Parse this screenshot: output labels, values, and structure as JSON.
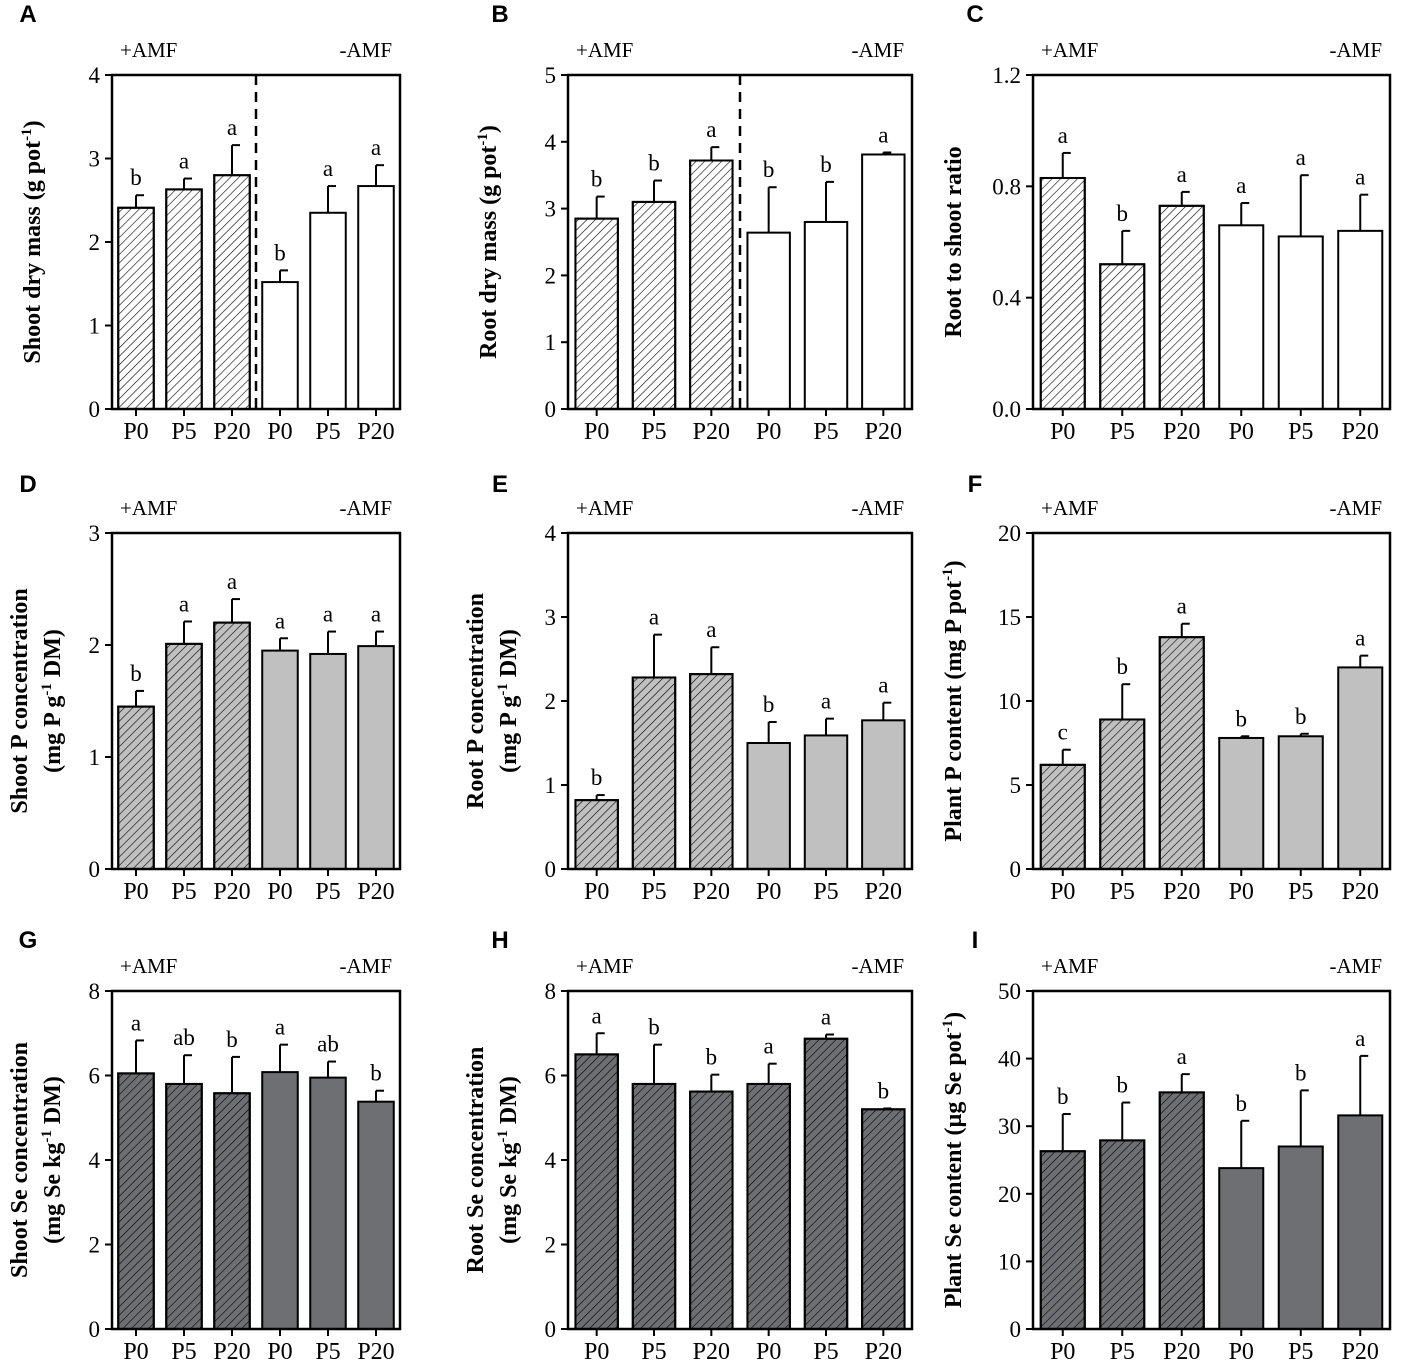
{
  "colors": {
    "light": "#ffffff",
    "medium": "#c0c0c0",
    "dark": "#6e6f72",
    "stroke": "#000000"
  },
  "chart_data": [
    {
      "type": "bar",
      "panel": "A",
      "categories": [
        "P0",
        "P5",
        "P20",
        "P0",
        "P5",
        "P20"
      ],
      "groups": [
        "+AMF",
        "-AMF"
      ],
      "ylabel_main": "Shoot dry mass (g pot",
      "ylabel_sup": "-1",
      "ylabel_end": ")",
      "ylabel_line2_main": "",
      "ylabel_line2_sup": "",
      "ylabel_line2_end": "",
      "ylim": [
        0,
        4
      ],
      "yticks": [
        "0",
        "1",
        "2",
        "3",
        "4"
      ],
      "values": [
        2.41,
        2.63,
        2.8,
        1.52,
        2.35,
        2.67
      ],
      "errors": [
        0.15,
        0.13,
        0.36,
        0.14,
        0.32,
        0.25
      ],
      "sig": [
        "b",
        "a",
        "a",
        "b",
        "a",
        "a"
      ],
      "color_amf": "light",
      "color_noamf": "light",
      "hatch_noamf": false,
      "divider": true
    },
    {
      "type": "bar",
      "panel": "B",
      "categories": [
        "P0",
        "P5",
        "P20",
        "P0",
        "P5",
        "P20"
      ],
      "groups": [
        "+AMF",
        "-AMF"
      ],
      "ylabel_main": "Root dry mass (g pot",
      "ylabel_sup": "-1",
      "ylabel_end": ")",
      "ylabel_line2_main": "",
      "ylabel_line2_sup": "",
      "ylabel_line2_end": "",
      "ylim": [
        0,
        5
      ],
      "yticks": [
        "0",
        "1",
        "2",
        "3",
        "4",
        "5"
      ],
      "values": [
        2.85,
        3.1,
        3.72,
        2.64,
        2.8,
        3.81
      ],
      "errors": [
        0.33,
        0.32,
        0.2,
        0.68,
        0.6,
        0.03
      ],
      "sig": [
        "b",
        "b",
        "a",
        "b",
        "b",
        "a"
      ],
      "color_amf": "light",
      "color_noamf": "light",
      "hatch_noamf": false,
      "divider": true
    },
    {
      "type": "bar",
      "panel": "C",
      "categories": [
        "P0",
        "P5",
        "P20",
        "P0",
        "P5",
        "P20"
      ],
      "groups": [
        "+AMF",
        "-AMF"
      ],
      "ylabel_main": "Root to shoot ratio",
      "ylabel_sup": "",
      "ylabel_end": "",
      "ylabel_line2_main": "",
      "ylabel_line2_sup": "",
      "ylabel_line2_end": "",
      "ylim": [
        0,
        1.2
      ],
      "yticks": [
        "0.0",
        "0.4",
        "0.8",
        "1.2"
      ],
      "values": [
        0.83,
        0.52,
        0.73,
        0.66,
        0.62,
        0.64
      ],
      "errors": [
        0.09,
        0.12,
        0.05,
        0.08,
        0.22,
        0.13
      ],
      "sig": [
        "a",
        "b",
        "a",
        "a",
        "a",
        "a"
      ],
      "color_amf": "light",
      "color_noamf": "light",
      "hatch_noamf": false,
      "divider": false
    },
    {
      "type": "bar",
      "panel": "D",
      "categories": [
        "P0",
        "P5",
        "P20",
        "P0",
        "P5",
        "P20"
      ],
      "groups": [
        "+AMF",
        "-AMF"
      ],
      "ylabel_main": "Shoot P concentration",
      "ylabel_sup": "",
      "ylabel_end": "",
      "ylabel_line2_main": "(mg P g",
      "ylabel_line2_sup": "-1",
      "ylabel_line2_end": " DM)",
      "ylim": [
        0,
        3
      ],
      "yticks": [
        "0",
        "1",
        "2",
        "3"
      ],
      "values": [
        1.45,
        2.01,
        2.2,
        1.95,
        1.92,
        1.99
      ],
      "errors": [
        0.14,
        0.2,
        0.21,
        0.11,
        0.2,
        0.13
      ],
      "sig": [
        "b",
        "a",
        "a",
        "a",
        "a",
        "a"
      ],
      "color_amf": "medium",
      "color_noamf": "medium",
      "hatch_noamf": false,
      "divider": false
    },
    {
      "type": "bar",
      "panel": "E",
      "categories": [
        "P0",
        "P5",
        "P20",
        "P0",
        "P5",
        "P20"
      ],
      "groups": [
        "+AMF",
        "-AMF"
      ],
      "ylabel_main": "Root P concentration",
      "ylabel_sup": "",
      "ylabel_end": "",
      "ylabel_line2_main": "(mg P g",
      "ylabel_line2_sup": "-1",
      "ylabel_line2_end": " DM)",
      "ylim": [
        0,
        4
      ],
      "yticks": [
        "0",
        "1",
        "2",
        "3",
        "4"
      ],
      "values": [
        0.82,
        2.28,
        2.32,
        1.5,
        1.59,
        1.77
      ],
      "errors": [
        0.06,
        0.51,
        0.32,
        0.25,
        0.2,
        0.21
      ],
      "sig": [
        "b",
        "a",
        "a",
        "b",
        "a",
        "a"
      ],
      "color_amf": "medium",
      "color_noamf": "medium",
      "hatch_noamf": false,
      "divider": false
    },
    {
      "type": "bar",
      "panel": "F",
      "categories": [
        "P0",
        "P5",
        "P20",
        "P0",
        "P5",
        "P20"
      ],
      "groups": [
        "+AMF",
        "-AMF"
      ],
      "ylabel_main": "Plant P content (mg P pot",
      "ylabel_sup": "-1",
      "ylabel_end": ")",
      "ylabel_line2_main": "",
      "ylabel_line2_sup": "",
      "ylabel_line2_end": "",
      "ylim": [
        0,
        20
      ],
      "yticks": [
        "0",
        "5",
        "10",
        "15",
        "20"
      ],
      "values": [
        6.2,
        8.9,
        13.8,
        7.8,
        7.9,
        12.0
      ],
      "errors": [
        0.9,
        2.1,
        0.8,
        0.1,
        0.15,
        0.7
      ],
      "sig": [
        "c",
        "b",
        "a",
        "b",
        "b",
        "a"
      ],
      "color_amf": "medium",
      "color_noamf": "medium",
      "hatch_noamf": false,
      "divider": false
    },
    {
      "type": "bar",
      "panel": "G",
      "categories": [
        "P0",
        "P5",
        "P20",
        "P0",
        "P5",
        "P20"
      ],
      "groups": [
        "+AMF",
        "-AMF"
      ],
      "ylabel_main": "Shoot Se concentration",
      "ylabel_sup": "",
      "ylabel_end": "",
      "ylabel_line2_main": "(mg Se kg",
      "ylabel_line2_sup": "-1",
      "ylabel_line2_end": " DM)",
      "ylim": [
        0,
        8
      ],
      "yticks": [
        "0",
        "2",
        "4",
        "6",
        "8"
      ],
      "values": [
        6.05,
        5.8,
        5.58,
        6.08,
        5.95,
        5.38
      ],
      "errors": [
        0.78,
        0.68,
        0.86,
        0.65,
        0.38,
        0.26
      ],
      "sig": [
        "a",
        "ab",
        "b",
        "a",
        "ab",
        "b"
      ],
      "color_amf": "dark",
      "color_noamf": "dark",
      "hatch_noamf": false,
      "divider": false
    },
    {
      "type": "bar",
      "panel": "H",
      "categories": [
        "P0",
        "P5",
        "P20",
        "P0",
        "P5",
        "P20"
      ],
      "groups": [
        "+AMF",
        "-AMF"
      ],
      "ylabel_main": "Root Se concentration",
      "ylabel_sup": "",
      "ylabel_end": "",
      "ylabel_line2_main": "(mg Se kg",
      "ylabel_line2_sup": "-1",
      "ylabel_line2_end": " DM)",
      "ylim": [
        0,
        8
      ],
      "yticks": [
        "0",
        "2",
        "4",
        "6",
        "8"
      ],
      "values": [
        6.5,
        5.8,
        5.62,
        5.8,
        6.87,
        5.2
      ],
      "errors": [
        0.5,
        0.93,
        0.4,
        0.48,
        0.1,
        0.02
      ],
      "sig": [
        "a",
        "b",
        "b",
        "a",
        "a",
        "b"
      ],
      "color_amf": "dark",
      "color_noamf": "dark",
      "hatch_noamf": true,
      "divider": false
    },
    {
      "type": "bar",
      "panel": "I",
      "categories": [
        "P0",
        "P5",
        "P20",
        "P0",
        "P5",
        "P20"
      ],
      "groups": [
        "+AMF",
        "-AMF"
      ],
      "ylabel_main": "Plant Se content (µg Se pot",
      "ylabel_sup": "-1",
      "ylabel_end": ")",
      "ylabel_line2_main": "",
      "ylabel_line2_sup": "",
      "ylabel_line2_end": "",
      "ylim": [
        0,
        50
      ],
      "yticks": [
        "0",
        "10",
        "20",
        "30",
        "40",
        "50"
      ],
      "values": [
        26.3,
        27.9,
        35.0,
        23.8,
        27.0,
        31.6
      ],
      "errors": [
        5.5,
        5.6,
        2.7,
        7.0,
        8.3,
        8.8
      ],
      "sig": [
        "b",
        "b",
        "a",
        "b",
        "b",
        "a"
      ],
      "color_amf": "dark",
      "color_noamf": "dark",
      "hatch_noamf": false,
      "divider": false
    }
  ]
}
